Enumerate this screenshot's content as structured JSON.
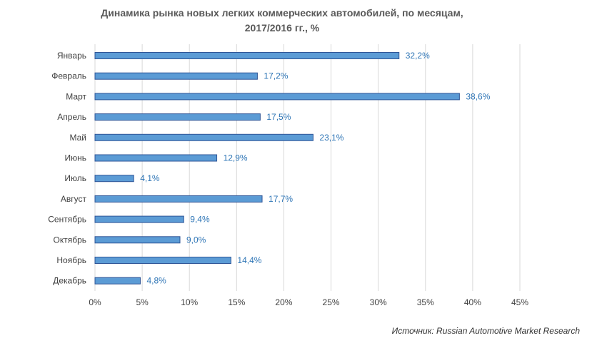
{
  "chart_data": {
    "type": "bar",
    "orientation": "horizontal",
    "title": [
      "Динамика рынка новых легких коммерческих автомобилей, по месяцам,",
      "2017/2016 гг., %"
    ],
    "categories": [
      "Январь",
      "Февраль",
      "Март",
      "Апрель",
      "Май",
      "Июнь",
      "Июль",
      "Август",
      "Сентябрь",
      "Октябрь",
      "Ноябрь",
      "Декабрь"
    ],
    "values": [
      32.2,
      17.2,
      38.6,
      17.5,
      23.1,
      12.9,
      4.1,
      17.7,
      9.4,
      9.0,
      14.4,
      4.8
    ],
    "data_labels": [
      "32,2%",
      "17,2%",
      "38,6%",
      "17,5%",
      "23,1%",
      "12,9%",
      "4,1%",
      "17,7%",
      "9,4%",
      "9,0%",
      "14,4%",
      "4,8%"
    ],
    "x_ticks": [
      0,
      5,
      10,
      15,
      20,
      25,
      30,
      35,
      40,
      45
    ],
    "x_tick_labels": [
      "0%",
      "5%",
      "10%",
      "15%",
      "20%",
      "25%",
      "30%",
      "35%",
      "40%",
      "45%"
    ],
    "xlim": [
      0,
      45
    ],
    "xlabel": "",
    "ylabel": "",
    "grid": "vertical",
    "legend": "none",
    "colors": {
      "bar_fill": "#5b9bd5",
      "bar_edge": "#2f5597",
      "data_label": "#2e75b6",
      "grid": "#d9d9d9",
      "category_text": "#404040",
      "tick_text": "#404040",
      "title_text": "#595959"
    }
  },
  "source": "Источник: Russian Automotive Market Research"
}
